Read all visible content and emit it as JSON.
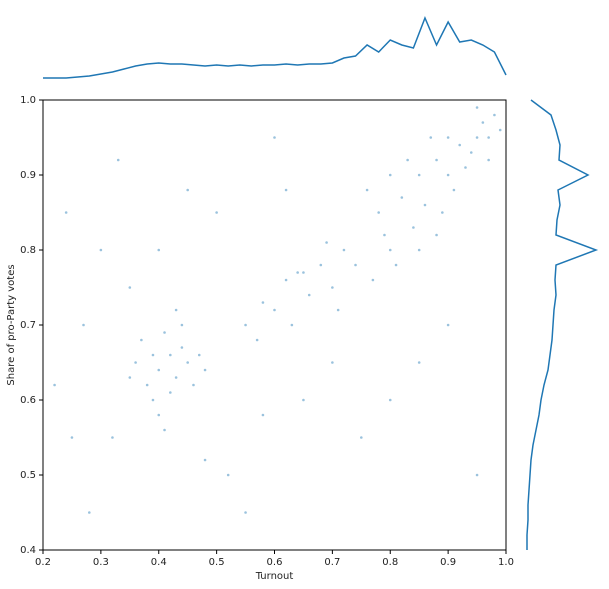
{
  "chart_data": [
    {
      "type": "scatter",
      "xlabel": "Turnout",
      "ylabel": "Share of pro-Party votes",
      "color": "#1f77b4",
      "xlim": [
        0.2,
        1.0
      ],
      "ylim": [
        0.4,
        1.0
      ],
      "xticks": [
        0.2,
        0.3,
        0.4,
        0.5,
        0.6,
        0.7,
        0.8,
        0.9,
        {
          "value": 1.0,
          "label": "1.0"
        }
      ],
      "yticks": [
        {
          "value": 0.4,
          "label": "0.4"
        },
        0.5,
        0.6,
        0.7,
        0.8,
        0.9,
        {
          "value": 1.0,
          "label": "1.0"
        }
      ],
      "x": [
        0.42,
        0.4,
        0.44,
        0.38,
        0.45,
        0.41,
        0.39,
        0.43,
        0.47,
        0.36,
        0.4,
        0.44,
        0.37,
        0.46,
        0.42,
        0.39,
        0.48,
        0.41,
        0.35,
        0.43,
        0.55,
        0.58,
        0.6,
        0.62,
        0.64,
        0.65,
        0.66,
        0.68,
        0.7,
        0.72,
        0.74,
        0.71,
        0.69,
        0.63,
        0.57,
        0.78,
        0.8,
        0.82,
        0.84,
        0.85,
        0.86,
        0.88,
        0.9,
        0.91,
        0.92,
        0.94,
        0.95,
        0.96,
        0.97,
        0.98,
        0.99,
        0.93,
        0.89,
        0.87,
        0.81,
        0.83,
        0.79,
        0.76,
        0.95,
        0.97,
        0.85,
        0.9,
        0.88,
        0.8,
        0.77,
        0.25,
        0.3,
        0.28,
        0.22,
        0.33,
        0.5,
        0.52,
        0.6,
        0.55,
        0.65,
        0.75,
        0.85,
        0.95,
        0.45,
        0.35,
        0.27,
        0.58,
        0.7,
        0.9,
        0.48,
        0.32,
        0.62,
        0.8,
        0.24,
        0.4
      ],
      "y": [
        0.66,
        0.64,
        0.67,
        0.62,
        0.65,
        0.69,
        0.6,
        0.63,
        0.66,
        0.65,
        0.58,
        0.7,
        0.68,
        0.62,
        0.61,
        0.66,
        0.64,
        0.56,
        0.63,
        0.72,
        0.7,
        0.73,
        0.72,
        0.76,
        0.77,
        0.77,
        0.74,
        0.78,
        0.75,
        0.8,
        0.78,
        0.72,
        0.81,
        0.7,
        0.68,
        0.85,
        0.8,
        0.87,
        0.83,
        0.9,
        0.86,
        0.92,
        0.9,
        0.88,
        0.94,
        0.93,
        0.95,
        0.97,
        0.95,
        0.98,
        0.96,
        0.91,
        0.85,
        0.95,
        0.78,
        0.92,
        0.82,
        0.88,
        0.99,
        0.92,
        0.8,
        0.95,
        0.82,
        0.9,
        0.76,
        0.55,
        0.8,
        0.45,
        0.62,
        0.92,
        0.85,
        0.5,
        0.95,
        0.45,
        0.6,
        0.55,
        0.65,
        0.5,
        0.88,
        0.75,
        0.7,
        0.58,
        0.65,
        0.7,
        0.52,
        0.55,
        0.88,
        0.6,
        0.85,
        0.8
      ]
    },
    {
      "type": "line",
      "color": "#1f77b4",
      "xlim": [
        0.2,
        1.0
      ],
      "ylim": [
        0,
        75
      ],
      "x": [
        0.2,
        0.22,
        0.24,
        0.26,
        0.28,
        0.3,
        0.32,
        0.34,
        0.36,
        0.38,
        0.4,
        0.42,
        0.44,
        0.46,
        0.48,
        0.5,
        0.52,
        0.54,
        0.56,
        0.58,
        0.6,
        0.62,
        0.64,
        0.66,
        0.68,
        0.7,
        0.72,
        0.74,
        0.76,
        0.78,
        0.8,
        0.82,
        0.84,
        0.86,
        0.88,
        0.9,
        0.92,
        0.94,
        0.96,
        0.98,
        1.0
      ],
      "values": [
        2,
        2,
        2,
        3,
        4,
        6,
        8,
        11,
        14,
        16,
        17,
        16,
        16,
        15,
        14,
        15,
        14,
        15,
        14,
        15,
        15,
        16,
        15,
        16,
        16,
        17,
        22,
        24,
        35,
        28,
        40,
        35,
        32,
        62,
        35,
        58,
        38,
        40,
        35,
        28,
        5
      ]
    },
    {
      "type": "line",
      "color": "#1f77b4",
      "ylim": [
        0.4,
        1.0
      ],
      "xlim": [
        0,
        75
      ],
      "y": [
        0.4,
        0.42,
        0.44,
        0.46,
        0.48,
        0.5,
        0.52,
        0.54,
        0.56,
        0.58,
        0.6,
        0.62,
        0.64,
        0.66,
        0.68,
        0.7,
        0.72,
        0.74,
        0.76,
        0.78,
        0.8,
        0.82,
        0.84,
        0.86,
        0.88,
        0.9,
        0.92,
        0.94,
        0.96,
        0.98,
        1.0
      ],
      "values": [
        1,
        1,
        2,
        2,
        3,
        4,
        5,
        7,
        10,
        13,
        15,
        18,
        22,
        24,
        26,
        27,
        28,
        30,
        29,
        30,
        70,
        30,
        31,
        34,
        32,
        62,
        33,
        34,
        30,
        25,
        5
      ]
    }
  ]
}
